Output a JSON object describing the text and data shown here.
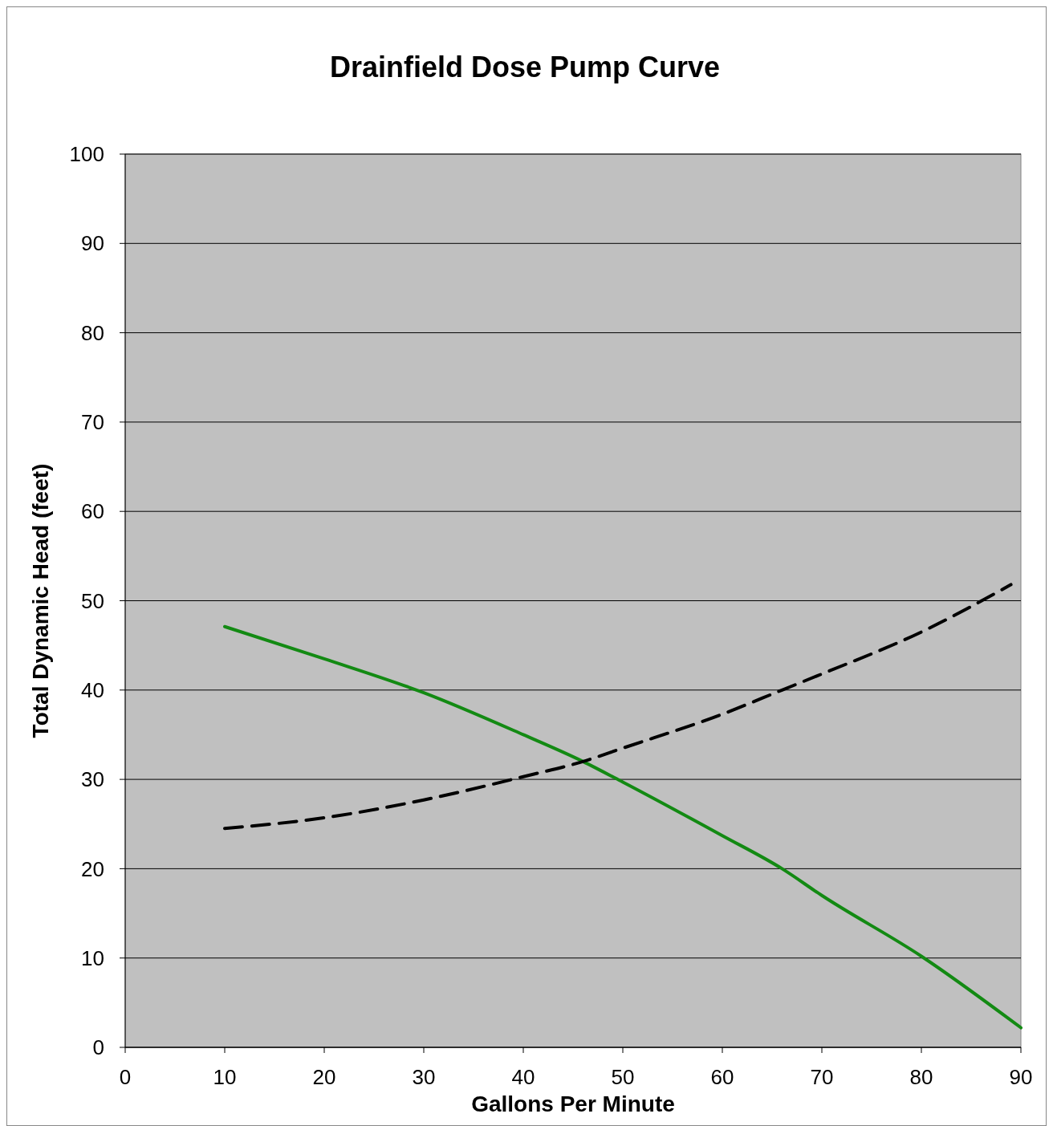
{
  "chart_data": {
    "type": "line",
    "title": "Drainfield Dose Pump Curve",
    "xlabel": "Gallons Per Minute",
    "ylabel": "Total Dynamic Head (feet)",
    "xlim": [
      0,
      90
    ],
    "xticks": [
      0,
      10,
      20,
      30,
      40,
      50,
      60,
      70,
      80,
      90
    ],
    "ylim": [
      0,
      100
    ],
    "yticks": [
      0,
      10,
      20,
      30,
      40,
      50,
      60,
      70,
      80,
      90,
      100
    ],
    "grid": "y",
    "marker": "none",
    "series": [
      {
        "color": "#138a13",
        "line_style": "solid",
        "x": [
          10,
          20,
          30,
          40,
          46,
          50,
          60,
          66,
          70,
          80,
          90
        ],
        "values": [
          47.1,
          43.5,
          39.7,
          35,
          32,
          29.7,
          23.7,
          20,
          17,
          10.2,
          2.2
        ]
      },
      {
        "color": "#000000",
        "line_style": "dashed",
        "x": [
          10,
          20,
          30,
          40,
          46,
          50,
          60,
          66,
          70,
          80,
          89
        ],
        "values": [
          24.5,
          25.7,
          27.7,
          30.3,
          32,
          33.5,
          37.3,
          40,
          41.8,
          46.5,
          51.8
        ]
      }
    ]
  }
}
